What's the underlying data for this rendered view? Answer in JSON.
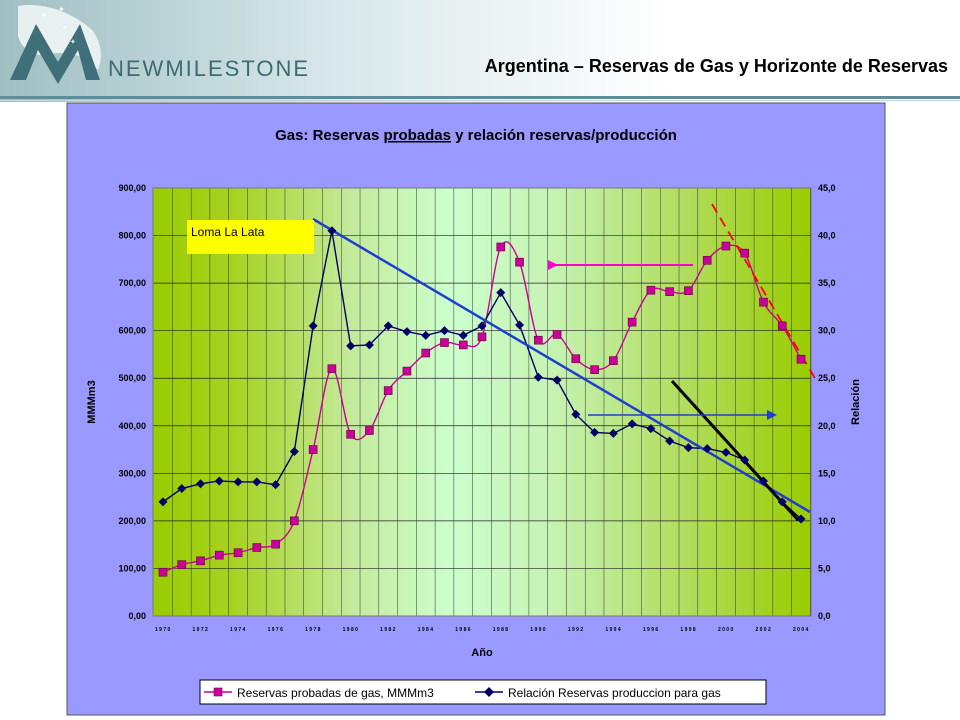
{
  "header": {
    "brand": "NEWMILESTONE",
    "slide_title": "Argentina – Reservas de Gas y Horizonte de Reservas"
  },
  "colors": {
    "frame_bg": "#9999ff",
    "plot_green_dark": "#99cc00",
    "plot_green_light": "#ccffcc",
    "reserves_series": "#cc0099",
    "ratio_series": "#000066",
    "trend_blue": "#1f3fcf",
    "arrow_magenta": "#ff00cc",
    "dashed_red": "#ff0000",
    "annotation_yellow": "#ffff00"
  },
  "chart_data": {
    "type": "line",
    "title_parts": [
      "Gas: Reservas ",
      "probadas",
      " y relación reservas/producción"
    ],
    "ylabel": "MMMm3",
    "y2label": "Relación",
    "xlabel": "Año",
    "ylim": [
      0,
      900
    ],
    "y2lim": [
      0,
      45
    ],
    "yticks": [
      "0,00",
      "100,00",
      "200,00",
      "300,00",
      "400,00",
      "500,00",
      "600,00",
      "700,00",
      "800,00",
      "900,00"
    ],
    "y2ticks": [
      "0,0",
      "5,0",
      "10,0",
      "15,0",
      "20,0",
      "25,0",
      "30,0",
      "35,0",
      "40,0",
      "45,0"
    ],
    "x": [
      1970,
      1971,
      1972,
      1973,
      1974,
      1975,
      1976,
      1977,
      1978,
      1979,
      1980,
      1981,
      1982,
      1983,
      1984,
      1985,
      1986,
      1987,
      1988,
      1989,
      1990,
      1991,
      1992,
      1993,
      1994,
      1995,
      1996,
      1997,
      1998,
      1999,
      2000,
      2001,
      2002,
      2003,
      2004
    ],
    "xtick_labels": [
      "1 9 7 0",
      "1 9 7 2",
      "1 9 7 4",
      "1 9 7 6",
      "1 9 7 8",
      "1 9 8 0",
      "1 9 8 2",
      "1 9 8 4",
      "1 9 8 6",
      "1 9 8 8",
      "1 9 9 0",
      "1 9 9 2",
      "1 9 9 4",
      "1 9 9 6",
      "1 9 9 8",
      "2 0 0 0",
      "2 0 0 2",
      "2 0 0 4"
    ],
    "grid": true,
    "legend_position": "bottom",
    "series": [
      {
        "name": "Reservas probadas de gas, MMMm3",
        "axis": "left",
        "marker": "square",
        "values": [
          92,
          108,
          116,
          128,
          133,
          144,
          151,
          200,
          350,
          520,
          382,
          390,
          474,
          515,
          553,
          575,
          570,
          587,
          776,
          744,
          580,
          592,
          541,
          518,
          537,
          618,
          685,
          682,
          684,
          748,
          778,
          763,
          660,
          610,
          540
        ]
      },
      {
        "name": "Relación Reservas produccion para gas",
        "axis": "right",
        "marker": "diamond",
        "values": [
          12.0,
          13.4,
          13.9,
          14.2,
          14.1,
          14.1,
          13.8,
          17.3,
          30.5,
          40.5,
          28.4,
          28.5,
          30.5,
          29.9,
          29.5,
          30.0,
          29.5,
          30.5,
          34.0,
          30.6,
          25.1,
          24.8,
          21.2,
          19.3,
          19.2,
          20.2,
          19.7,
          18.4,
          17.7,
          17.6,
          17.2,
          16.4,
          14.2,
          12.0,
          10.2
        ]
      }
    ],
    "annotations": {
      "loma_la_lata": "Loma La Lata"
    }
  }
}
